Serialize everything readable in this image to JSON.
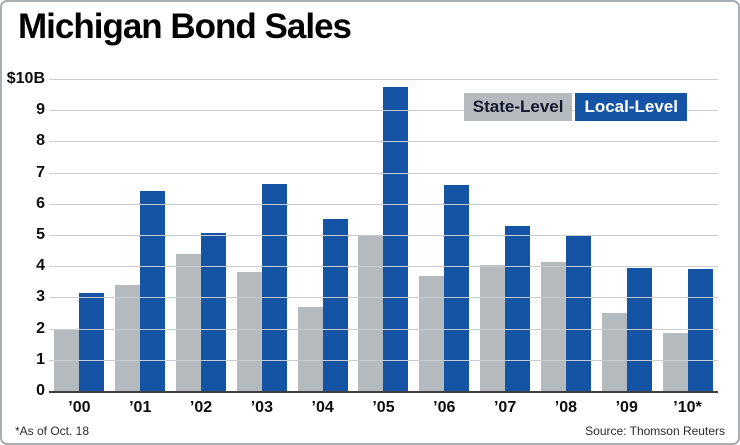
{
  "title": "Michigan Bond Sales",
  "footnote": "*As of Oct. 18",
  "source": "Source: Thomson Reuters",
  "colors": {
    "state": "#B5BABE",
    "local": "#1554A5",
    "gridline": "#C9CDD1",
    "axis": "#3F3F3F",
    "border": "#A9AEB2",
    "legend_state_text": "#15192E",
    "legend_local_text": "#FFFFFF"
  },
  "legend": {
    "state_label": "State-Level",
    "local_label": "Local-Level"
  },
  "chart_data": {
    "type": "bar",
    "title": "Michigan Bond Sales",
    "categories": [
      "’00",
      "’01",
      "’02",
      "’03",
      "’04",
      "’05",
      "’06",
      "’07",
      "’08",
      "’09",
      "’10*"
    ],
    "series": [
      {
        "name": "State-Level",
        "color": "#B5BABE",
        "values": [
          2.0,
          3.4,
          4.4,
          3.8,
          2.7,
          5.0,
          3.7,
          4.05,
          4.15,
          2.5,
          1.85
        ]
      },
      {
        "name": "Local-Level",
        "color": "#1554A5",
        "values": [
          3.15,
          6.4,
          5.05,
          6.65,
          5.5,
          9.75,
          6.6,
          5.3,
          5.0,
          3.95,
          3.9
        ]
      }
    ],
    "xlabel": "",
    "ylabel": "",
    "ylim": [
      0,
      10
    ],
    "yticks": [
      0,
      1,
      2,
      3,
      4,
      5,
      6,
      7,
      8,
      9,
      10
    ],
    "ytick_labels": [
      "0",
      "1",
      "2",
      "3",
      "4",
      "5",
      "6",
      "7",
      "8",
      "9",
      "$10B"
    ],
    "grid": true,
    "legend_position": "top-right",
    "units": "billions of dollars"
  }
}
